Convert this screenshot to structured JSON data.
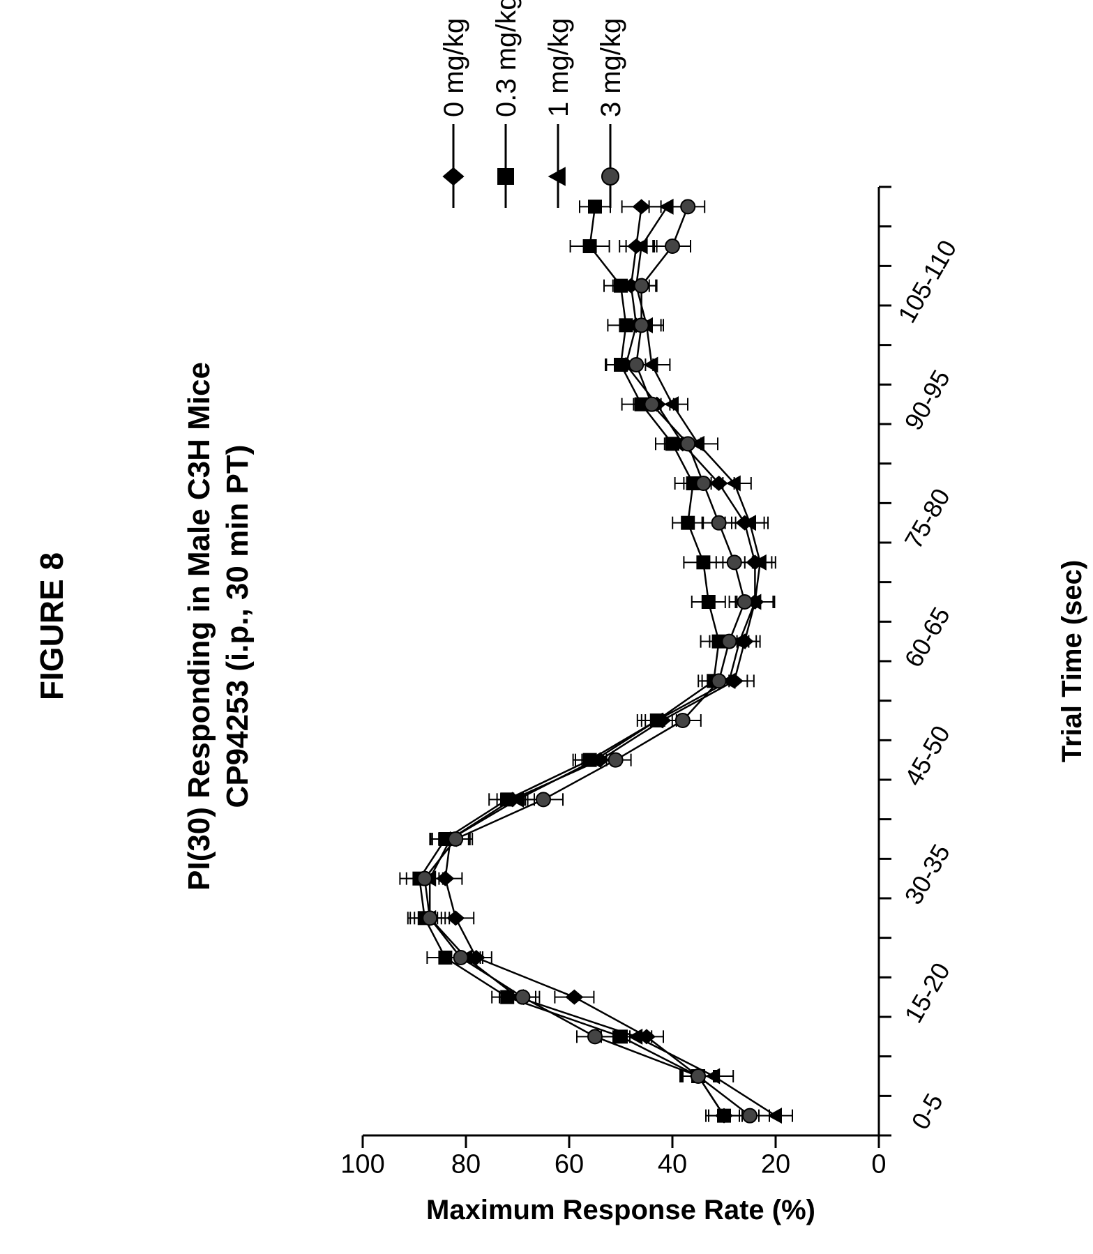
{
  "figure_label": "FIGURE 8",
  "chart_data": {
    "type": "line",
    "title": "PI(30) Responding in Male C3H Mice",
    "subtitle": "CP94253 (i.p., 30 min PT)",
    "xlabel": "Trial Time (sec)",
    "ylabel": "Maximum Response Rate (%)",
    "ylim": [
      0,
      100
    ],
    "yticks": [
      "0",
      "20",
      "40",
      "60",
      "80",
      "100"
    ],
    "x_tick_labels": [
      "0-5",
      "15-20",
      "30-35",
      "45-50",
      "60-65",
      "75-80",
      "90-95",
      "105-110"
    ],
    "bins": 24,
    "error_bars": true,
    "legend_position": "right (rotated top)",
    "orientation": "rotated 90° counter-clockwise",
    "series": [
      {
        "name": "0 mg/kg",
        "marker": "diamond",
        "color": "#000000",
        "values": [
          30,
          35,
          45,
          59,
          78,
          82,
          84,
          83,
          71,
          54,
          42,
          28,
          26,
          24,
          24,
          26,
          31,
          38,
          43,
          49,
          47,
          48,
          47,
          46
        ]
      },
      {
        "name": "0.3 mg/kg",
        "marker": "square",
        "color": "#000000",
        "values": [
          30,
          35,
          50,
          72,
          84,
          88,
          89,
          84,
          72,
          56,
          43,
          32,
          31,
          33,
          34,
          37,
          36,
          40,
          46,
          50,
          49,
          50,
          56,
          55
        ]
      },
      {
        "name": "1 mg/kg",
        "marker": "triangle",
        "color": "#000000",
        "values": [
          20,
          32,
          47,
          70,
          80,
          87,
          87,
          83,
          70,
          55,
          43,
          29,
          27,
          24,
          23,
          25,
          28,
          35,
          40,
          44,
          45,
          47,
          46,
          41
        ]
      },
      {
        "name": "3 mg/kg",
        "marker": "circle",
        "color": "#000000",
        "values": [
          25,
          35,
          55,
          69,
          81,
          87,
          88,
          82,
          65,
          51,
          38,
          31,
          29,
          26,
          28,
          31,
          34,
          37,
          44,
          47,
          46,
          46,
          40,
          37
        ]
      }
    ]
  }
}
